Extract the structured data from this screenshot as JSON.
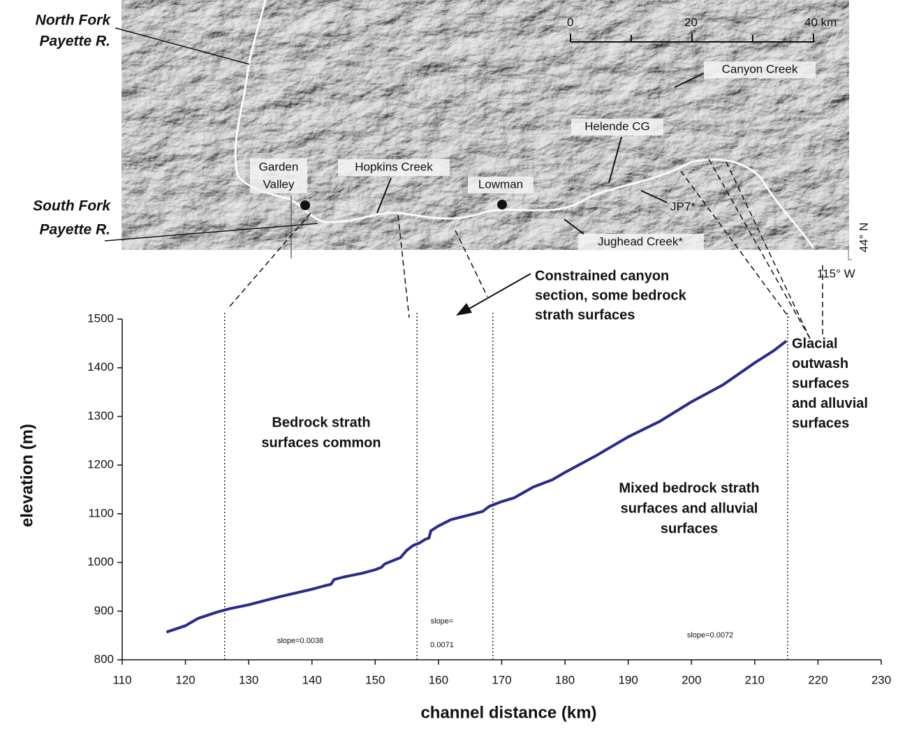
{
  "chart_data": {
    "type": "line",
    "xlabel": "channel distance (km)",
    "ylabel": "elevation (m)",
    "x": [
      117,
      120,
      122,
      125,
      127,
      130,
      135,
      140,
      142,
      143,
      143.5,
      145,
      148,
      150,
      151,
      151.5,
      154,
      155,
      156,
      157,
      158,
      158.5,
      158.8,
      160,
      162,
      165,
      167,
      168,
      170,
      172,
      175,
      178,
      180,
      185,
      190,
      195,
      200,
      205,
      210,
      213,
      215
    ],
    "series": [
      {
        "color": "#2a2a8c",
        "values": [
          857,
          870,
          885,
          898,
          905,
          913,
          930,
          945,
          952,
          955,
          965,
          970,
          978,
          985,
          990,
          997,
          1010,
          1025,
          1035,
          1040,
          1048,
          1050,
          1065,
          1075,
          1088,
          1098,
          1105,
          1115,
          1125,
          1133,
          1155,
          1170,
          1185,
          1220,
          1258,
          1290,
          1330,
          1365,
          1410,
          1435,
          1455
        ]
      }
    ],
    "xlim": [
      110,
      230
    ],
    "xticks": [
      110,
      120,
      130,
      140,
      150,
      160,
      170,
      180,
      190,
      200,
      210,
      220,
      230
    ],
    "ylim": [
      800,
      1500
    ],
    "yticks": [
      800,
      900,
      1000,
      1100,
      1200,
      1300,
      1400,
      1500
    ],
    "boundaries": [
      126.2,
      156.6,
      168.6,
      215.2
    ],
    "annotations": {
      "bedrock": [
        "Bedrock strath",
        "surfaces common"
      ],
      "constrained": [
        "Constrained canyon",
        "section, some bedrock",
        "strath surfaces"
      ],
      "glacial": [
        "Glacial",
        "outwash",
        "surfaces",
        "and alluvial",
        "surfaces"
      ],
      "mixed": [
        "Mixed bedrock strath",
        "surfaces and alluvial",
        "surfaces"
      ],
      "slope1": "slope=0.0038",
      "slope2": [
        "slope=",
        "0.0071"
      ],
      "slope3": "slope=0.0072"
    }
  },
  "map": {
    "north_fork": [
      "North Fork",
      "Payette R."
    ],
    "south_fork": [
      "South Fork",
      "Payette R."
    ],
    "places": {
      "garden_valley": [
        "Garden",
        "Valley"
      ],
      "hopkins": "Hopkins Creek",
      "lowman": "Lowman",
      "helende": "Helende CG",
      "canyon": "Canyon Creek",
      "jp7": "JP7*",
      "jughead": "Jughead Creek*"
    },
    "scale": [
      "0",
      "20",
      "40 km"
    ],
    "lat": "44° N",
    "lon": "115° W"
  }
}
